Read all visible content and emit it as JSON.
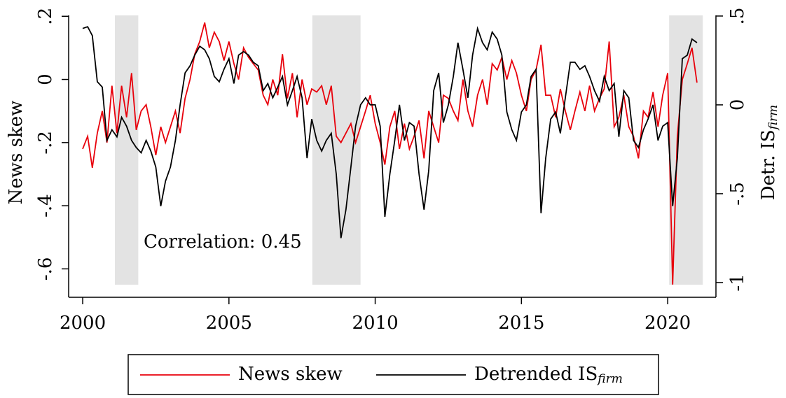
{
  "chart_data": {
    "type": "line",
    "ylabel": "News skew",
    "y2label": "Detr. IS",
    "y2label_subscript": "firm",
    "annotation": "Correlation: 0.45",
    "xlim": [
      1999.52,
      2021.65
    ],
    "xticks": [
      2000,
      2005,
      2010,
      2015,
      2020
    ],
    "ylim": [
      -0.69,
      0.225
    ],
    "yticks": [
      {
        "value": -0.6,
        "label": "-.6"
      },
      {
        "value": -0.4,
        "label": "-.4"
      },
      {
        "value": -0.2,
        "label": "-.2"
      },
      0,
      {
        "value": 0.2,
        "label": ".2"
      }
    ],
    "y2lim": [
      -1.083,
      0.543
    ],
    "y2ticks": [
      -1,
      {
        "value": -0.5,
        "label": "-.5"
      },
      0,
      {
        "value": 0.5,
        "label": ".5"
      }
    ],
    "shaded_ranges": [
      [
        2001.1,
        2001.9
      ],
      [
        2007.85,
        2009.5
      ],
      [
        2020.05,
        2021.2
      ]
    ],
    "shade_color": "#e3e3e3",
    "x": [
      2000,
      2000.17,
      2000.33,
      2000.5,
      2000.67,
      2000.83,
      2001,
      2001.17,
      2001.33,
      2001.5,
      2001.67,
      2001.83,
      2002,
      2002.17,
      2002.33,
      2002.5,
      2002.67,
      2002.83,
      2003,
      2003.17,
      2003.33,
      2003.5,
      2003.67,
      2003.83,
      2004,
      2004.17,
      2004.33,
      2004.5,
      2004.67,
      2004.83,
      2005,
      2005.17,
      2005.33,
      2005.5,
      2005.67,
      2005.83,
      2006,
      2006.17,
      2006.33,
      2006.5,
      2006.67,
      2006.83,
      2007,
      2007.17,
      2007.33,
      2007.5,
      2007.67,
      2007.83,
      2008,
      2008.17,
      2008.33,
      2008.5,
      2008.67,
      2008.83,
      2009,
      2009.17,
      2009.33,
      2009.5,
      2009.67,
      2009.83,
      2010,
      2010.17,
      2010.33,
      2010.5,
      2010.67,
      2010.83,
      2011,
      2011.17,
      2011.33,
      2011.5,
      2011.67,
      2011.83,
      2012,
      2012.17,
      2012.33,
      2012.5,
      2012.67,
      2012.83,
      2013,
      2013.17,
      2013.33,
      2013.5,
      2013.67,
      2013.83,
      2014,
      2014.17,
      2014.33,
      2014.5,
      2014.67,
      2014.83,
      2015,
      2015.17,
      2015.33,
      2015.5,
      2015.67,
      2015.83,
      2016,
      2016.17,
      2016.33,
      2016.5,
      2016.67,
      2016.83,
      2017,
      2017.17,
      2017.33,
      2017.5,
      2017.67,
      2017.83,
      2018,
      2018.17,
      2018.33,
      2018.5,
      2018.67,
      2018.83,
      2019,
      2019.17,
      2019.33,
      2019.5,
      2019.67,
      2019.83,
      2020,
      2020.17,
      2020.33,
      2020.5,
      2020.67,
      2020.83,
      2021
    ],
    "series": [
      {
        "name": "News skew",
        "color": "#e8000b",
        "values": [
          -0.22,
          -0.18,
          -0.28,
          -0.17,
          -0.1,
          -0.2,
          -0.02,
          -0.17,
          -0.02,
          -0.12,
          0.02,
          -0.16,
          -0.1,
          -0.08,
          -0.15,
          -0.24,
          -0.15,
          -0.2,
          -0.15,
          -0.1,
          -0.17,
          -0.06,
          0,
          0.08,
          0.12,
          0.18,
          0.1,
          0.15,
          0.12,
          0.06,
          0.12,
          0.05,
          0,
          0.1,
          0.07,
          0.05,
          0.03,
          -0.05,
          -0.08,
          0,
          -0.05,
          0.08,
          -0.06,
          0.02,
          -0.12,
          0,
          -0.08,
          -0.03,
          -0.04,
          -0.02,
          -0.08,
          -0.02,
          -0.18,
          -0.2,
          -0.17,
          -0.14,
          -0.2,
          -0.15,
          -0.1,
          -0.05,
          -0.14,
          -0.2,
          -0.27,
          -0.15,
          -0.1,
          -0.22,
          -0.14,
          -0.22,
          -0.18,
          -0.13,
          -0.25,
          -0.1,
          -0.15,
          -0.2,
          -0.05,
          -0.06,
          -0.1,
          -0.13,
          0,
          -0.1,
          -0.15,
          -0.05,
          0,
          -0.08,
          0.05,
          0.03,
          0.07,
          0,
          0.06,
          0.02,
          -0.05,
          -0.1,
          0,
          0.03,
          0.11,
          -0.05,
          -0.05,
          -0.12,
          -0.03,
          -0.1,
          -0.16,
          -0.1,
          -0.04,
          -0.1,
          -0.02,
          -0.1,
          -0.06,
          -0.03,
          0.12,
          -0.15,
          -0.12,
          -0.05,
          -0.15,
          -0.18,
          -0.25,
          -0.1,
          -0.12,
          -0.04,
          -0.15,
          -0.05,
          0.02,
          -0.65,
          -0.18,
          0,
          0.05,
          0.1,
          -0.01
        ]
      },
      {
        "name": "Detrended IS",
        "name_subscript": "firm",
        "color": "#000000",
        "axis": "y2",
        "values": [
          0.43,
          0.44,
          0.39,
          0.13,
          0.1,
          -0.2,
          -0.14,
          -0.18,
          -0.07,
          -0.12,
          -0.2,
          -0.24,
          -0.27,
          -0.2,
          -0.26,
          -0.35,
          -0.57,
          -0.43,
          -0.35,
          -0.2,
          0,
          0.18,
          0.22,
          0.28,
          0.33,
          0.31,
          0.26,
          0.16,
          0.13,
          0.2,
          0.26,
          0.12,
          0.28,
          0.3,
          0.28,
          0.24,
          0.22,
          0.08,
          0.12,
          0.04,
          0.1,
          0.16,
          0,
          0.08,
          0.16,
          0.04,
          -0.3,
          -0.08,
          -0.2,
          -0.26,
          -0.2,
          -0.16,
          -0.39,
          -0.75,
          -0.59,
          -0.35,
          -0.12,
          0,
          0.04,
          0,
          0,
          -0.12,
          -0.63,
          -0.39,
          -0.2,
          0,
          -0.2,
          -0.1,
          -0.12,
          -0.39,
          -0.59,
          -0.37,
          0.08,
          0.18,
          -0.1,
          0,
          0.16,
          0.35,
          0.2,
          0.04,
          0.28,
          0.43,
          0.35,
          0.31,
          0.41,
          0.37,
          0.28,
          -0.04,
          -0.14,
          -0.2,
          -0.04,
          0,
          0.16,
          0.2,
          -0.61,
          -0.3,
          -0.08,
          -0.04,
          -0.16,
          0.04,
          0.24,
          0.24,
          0.2,
          0.22,
          0.16,
          0.08,
          0.02,
          0.16,
          0.08,
          0.12,
          -0.18,
          0.08,
          0.04,
          -0.2,
          -0.24,
          -0.14,
          -0.08,
          0,
          -0.2,
          -0.12,
          -0.1,
          -0.57,
          -0.3,
          0.26,
          0.28,
          0.37,
          0.35
        ]
      }
    ]
  }
}
